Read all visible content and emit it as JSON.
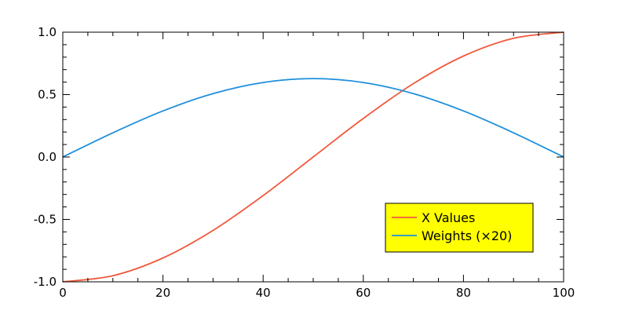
{
  "chart_data": {
    "type": "line",
    "title": "",
    "xlabel": "",
    "ylabel": "",
    "xlim": [
      0,
      100
    ],
    "ylim": [
      -1.0,
      1.0
    ],
    "x_ticks": [
      0,
      20,
      40,
      60,
      80,
      100
    ],
    "x_tick_labels": [
      "0",
      "20",
      "40",
      "60",
      "80",
      "100"
    ],
    "y_ticks": [
      -1.0,
      -0.5,
      0.0,
      0.5,
      1.0
    ],
    "y_tick_labels": [
      "-1.0",
      "-0.5",
      "0.0",
      "0.5",
      "1.0"
    ],
    "grid": false,
    "legend_position": "lower-right",
    "legend_background": "#ffff00",
    "x": [
      0,
      10,
      20,
      30,
      40,
      50,
      60,
      70,
      80,
      90,
      100
    ],
    "series": [
      {
        "name": "X Values",
        "color": "#f05a3c",
        "values": [
          -1.0,
          -0.951,
          -0.809,
          -0.588,
          -0.309,
          0.0,
          0.309,
          0.588,
          0.809,
          0.951,
          1.0
        ]
      },
      {
        "name": "Weights (×20)",
        "color": "#1f8fdc",
        "values": [
          0.0,
          0.194,
          0.369,
          0.508,
          0.597,
          0.628,
          0.597,
          0.508,
          0.369,
          0.194,
          0.0
        ]
      }
    ]
  }
}
